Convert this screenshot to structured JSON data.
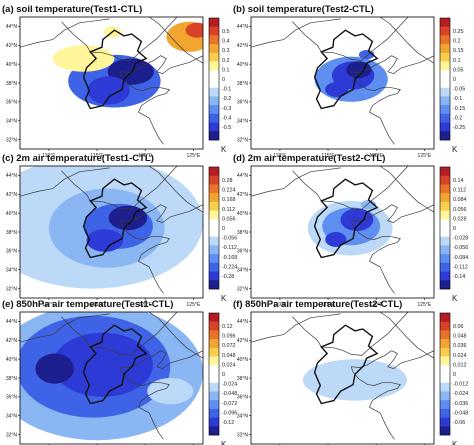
{
  "chart_data": [
    {
      "type": "heatmap",
      "title": "(a) soil temperature(Test1-CTL)",
      "colorbar_ticks": [
        "0.5",
        "0.4",
        "0.3",
        "0.2",
        "0.1",
        "0",
        "-0.1",
        "-0.2",
        "-0.3",
        "-0.4",
        "-0.5"
      ],
      "colorbar_range": [
        -0.5,
        0.5
      ],
      "unit": "K",
      "lon_ticks": [
        "110°E",
        "115°E",
        "120°E",
        "125°E"
      ],
      "lat_ticks": [
        "44°N",
        "42°N",
        "40°N",
        "38°N",
        "36°N",
        "34°N",
        "32°N"
      ],
      "fields": [
        {
          "lon": 116.8,
          "lat": 38.2,
          "rlon": 4.8,
          "rlat": 2.8,
          "value": -0.35
        },
        {
          "lon": 118.5,
          "lat": 39.2,
          "rlon": 2.4,
          "rlat": 1.4,
          "value": -0.48
        },
        {
          "lon": 116.2,
          "lat": 37.2,
          "rlon": 2.2,
          "rlat": 1.5,
          "value": -0.42
        },
        {
          "lon": 113.6,
          "lat": 40.6,
          "rlon": 3.2,
          "rlat": 1.4,
          "value": 0.1
        },
        {
          "lon": 124.6,
          "lat": 42.9,
          "rlon": 2.4,
          "rlat": 1.6,
          "value": 0.25
        },
        {
          "lon": 125.4,
          "lat": 43.6,
          "rlon": 1.2,
          "rlat": 0.8,
          "value": 0.36
        },
        {
          "lon": 116.6,
          "lat": 43.4,
          "rlon": 0.9,
          "rlat": 0.6,
          "value": 0.12
        }
      ]
    },
    {
      "type": "heatmap",
      "title": "(b) soil temperature(Test2-CTL)",
      "colorbar_ticks": [
        "0.25",
        "0.2",
        "0.15",
        "0.1",
        "0.05",
        "0",
        "-0.05",
        "-0.1",
        "-0.15",
        "-0.2",
        "-0.25"
      ],
      "colorbar_range": [
        -0.25,
        0.25
      ],
      "unit": "K",
      "lon_ticks": [
        "110°E",
        "115°E",
        "120°E",
        "125°E"
      ],
      "lat_ticks": [
        "44°N",
        "42°N",
        "40°N",
        "38°N",
        "36°N",
        "34°N",
        "32°N"
      ],
      "fields": [
        {
          "lon": 117.4,
          "lat": 38.4,
          "rlon": 3.8,
          "rlat": 2.4,
          "value": -0.12
        },
        {
          "lon": 117.6,
          "lat": 38.8,
          "rlon": 2.2,
          "rlat": 1.5,
          "value": -0.18
        },
        {
          "lon": 118.2,
          "lat": 39.4,
          "rlon": 1.3,
          "rlat": 0.9,
          "value": -0.23
        },
        {
          "lon": 115.9,
          "lat": 37.3,
          "rlon": 1.2,
          "rlat": 0.8,
          "value": -0.2
        },
        {
          "lon": 119.0,
          "lat": 41.0,
          "rlon": 0.8,
          "rlat": 0.5,
          "value": -0.15
        }
      ]
    },
    {
      "type": "heatmap",
      "title": "(c) 2m air temperature(Test1-CTL)",
      "colorbar_ticks": [
        "0.28",
        "0.224",
        "0.168",
        "0.112",
        "0.056",
        "0",
        "-0.056",
        "-0.112",
        "-0.168",
        "-0.224",
        "-0.28"
      ],
      "colorbar_range": [
        -0.28,
        0.28
      ],
      "unit": "K",
      "lon_ticks": [
        "110°E",
        "115°E",
        "120°E",
        "125°E"
      ],
      "lat_ticks": [
        "44°N",
        "42°N",
        "40°N",
        "38°N",
        "36°N",
        "34°N",
        "32°N"
      ],
      "fields": [
        {
          "lon": 114.5,
          "lat": 39.0,
          "rlon": 11.5,
          "rlat": 7.0,
          "value": -0.07
        },
        {
          "lon": 116.0,
          "lat": 38.4,
          "rlon": 6.0,
          "rlat": 4.2,
          "value": -0.12
        },
        {
          "lon": 117.2,
          "lat": 38.6,
          "rlon": 3.6,
          "rlat": 2.4,
          "value": -0.19
        },
        {
          "lon": 118.2,
          "lat": 39.5,
          "rlon": 2.0,
          "rlat": 1.3,
          "value": -0.25
        },
        {
          "lon": 115.8,
          "lat": 37.1,
          "rlon": 1.9,
          "rlat": 1.2,
          "value": -0.22
        }
      ]
    },
    {
      "type": "heatmap",
      "title": "(d) 2m air temperature(Test2-CTL)",
      "colorbar_ticks": [
        "0.14",
        "0.112",
        "0.084",
        "0.056",
        "0.028",
        "0",
        "-0.028",
        "-0.056",
        "-0.084",
        "-0.112",
        "-0.14"
      ],
      "colorbar_range": [
        -0.14,
        0.14
      ],
      "unit": "K",
      "lon_ticks": [
        "110°E",
        "115°E",
        "120°E",
        "125°E"
      ],
      "lat_ticks": [
        "44°N",
        "42°N",
        "40°N",
        "38°N",
        "36°N",
        "34°N",
        "32°N"
      ],
      "fields": [
        {
          "lon": 117.3,
          "lat": 38.4,
          "rlon": 4.4,
          "rlat": 2.9,
          "value": -0.04
        },
        {
          "lon": 117.4,
          "lat": 38.6,
          "rlon": 3.0,
          "rlat": 2.0,
          "value": -0.08
        },
        {
          "lon": 118.0,
          "lat": 39.3,
          "rlon": 1.7,
          "rlat": 1.2,
          "value": -0.12
        },
        {
          "lon": 115.8,
          "lat": 37.2,
          "rlon": 1.1,
          "rlat": 0.8,
          "value": -0.11
        },
        {
          "lon": 119.2,
          "lat": 40.9,
          "rlon": 0.8,
          "rlat": 0.5,
          "value": -0.06
        }
      ]
    },
    {
      "type": "heatmap",
      "title": "(e) 850hPa air temperature(Test1-CTL)",
      "colorbar_ticks": [
        "0.12",
        "0.096",
        "0.072",
        "0.048",
        "0.024",
        "0",
        "-0.024",
        "-0.048",
        "-0.072",
        "-0.096",
        "-0.12"
      ],
      "colorbar_range": [
        -0.12,
        0.12
      ],
      "unit": "K",
      "lon_ticks": [
        "110°E",
        "115°E",
        "120°E",
        "125°E"
      ],
      "lat_ticks": [
        "44°N",
        "42°N",
        "40°N",
        "38°N",
        "36°N",
        "34°N",
        "32°N"
      ],
      "fields": [
        {
          "lon": 115.0,
          "lat": 38.6,
          "rlon": 11.0,
          "rlat": 7.2,
          "value": -0.05
        },
        {
          "lon": 114.6,
          "lat": 39.2,
          "rlon": 8.0,
          "rlat": 5.4,
          "value": -0.075
        },
        {
          "lon": 115.6,
          "lat": 39.4,
          "rlon": 5.2,
          "rlat": 3.4,
          "value": -0.095
        },
        {
          "lon": 110.6,
          "lat": 39.0,
          "rlon": 2.0,
          "rlat": 1.6,
          "value": -0.11
        },
        {
          "lon": 122.6,
          "lat": 36.6,
          "rlon": 2.4,
          "rlat": 1.4,
          "value": -0.03
        }
      ]
    },
    {
      "type": "heatmap",
      "title": "(f) 850hPa air temperature(Test2-CTL)",
      "colorbar_ticks": [
        "0.06",
        "0.048",
        "0.036",
        "0.024",
        "0.012",
        "0",
        "-0.012",
        "-0.024",
        "-0.036",
        "-0.048",
        "-0.06"
      ],
      "colorbar_range": [
        -0.06,
        0.06
      ],
      "unit": "K",
      "lon_ticks": [
        "110°E",
        "115°E",
        "120°E",
        "125°E"
      ],
      "lat_ticks": [
        "44°N",
        "42°N",
        "40°N",
        "38°N",
        "36°N",
        "34°N",
        "32°N"
      ],
      "fields": [
        {
          "lon": 117.8,
          "lat": 37.8,
          "rlon": 5.4,
          "rlat": 2.2,
          "value": -0.015
        },
        {
          "lon": 119.5,
          "lat": 37.3,
          "rlon": 2.6,
          "rlat": 1.2,
          "value": -0.017
        }
      ]
    }
  ],
  "colors": {
    "palette": [
      "#1d1f8e",
      "#2e3ad6",
      "#3f63e6",
      "#5d8ef0",
      "#8ab6f4",
      "#bcd9f8",
      "#ffffff",
      "#ffffff",
      "#fff59a",
      "#f7cf4c",
      "#f2a530",
      "#e8742a",
      "#d84228",
      "#b41e22"
    ],
    "boundary": "#111111",
    "coast": "#3a3a3a",
    "frame": "#000000"
  }
}
